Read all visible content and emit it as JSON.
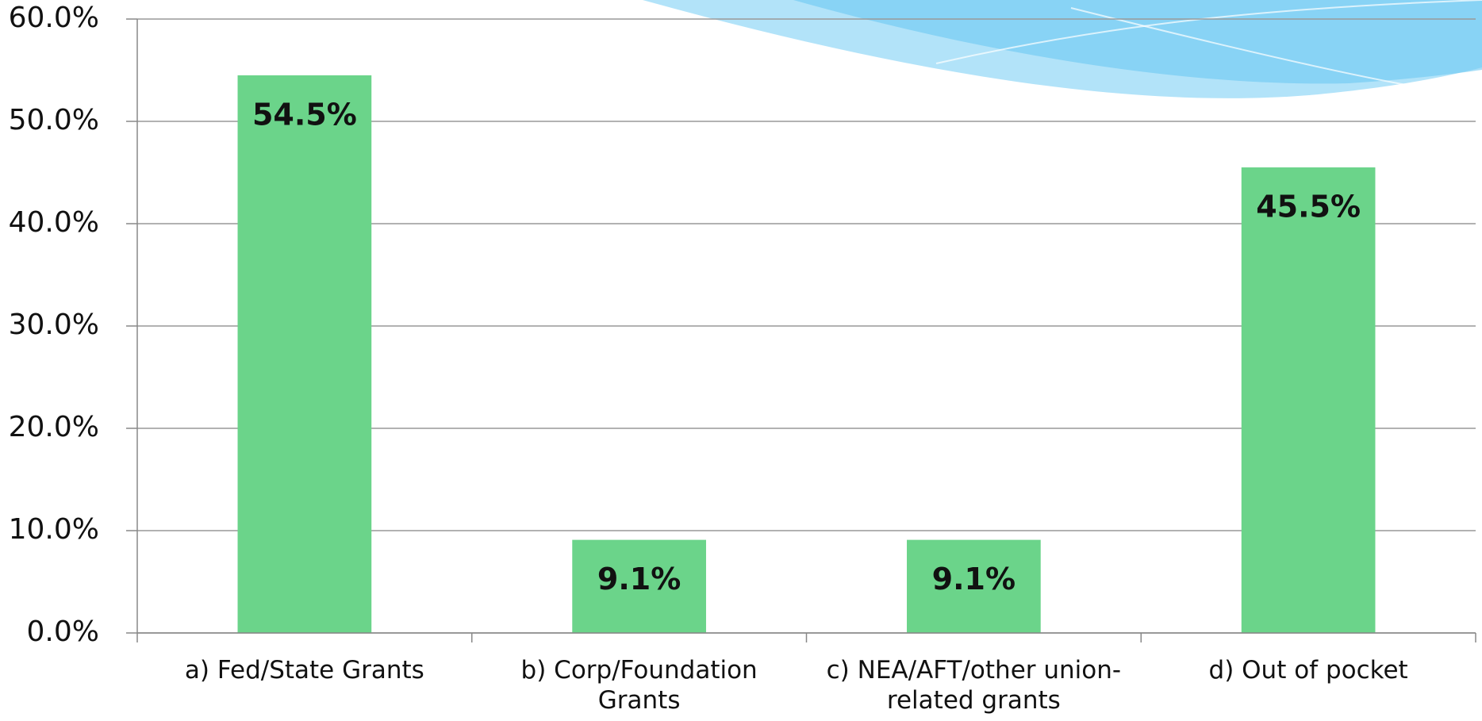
{
  "chart_data": {
    "type": "bar",
    "categories": [
      "a)  Fed/State Grants",
      "b)  Corp/Foundation Grants",
      "c)  NEA/AFT/other union-related grants",
      "d)  Out of pocket"
    ],
    "values": [
      54.5,
      9.1,
      9.1,
      45.5
    ],
    "value_labels": [
      "54.5%",
      "9.1%",
      "9.1%",
      "45.5%"
    ],
    "color": "#6bd48a",
    "ylim": [
      0,
      60
    ],
    "yticks": [
      {
        "value": 0,
        "label": "0.0%"
      },
      {
        "value": 10,
        "label": "10.0%"
      },
      {
        "value": 20,
        "label": "20.0%"
      },
      {
        "value": 30,
        "label": "30.0%"
      },
      {
        "value": 40,
        "label": "40.0%"
      },
      {
        "value": 50,
        "label": "50.0%"
      },
      {
        "value": 60,
        "label": "60.0%"
      }
    ],
    "grid": true
  }
}
